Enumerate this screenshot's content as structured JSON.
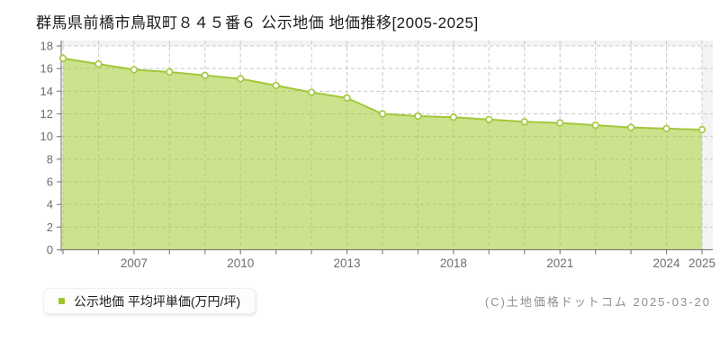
{
  "title": "群馬県前橋市鳥取町８４５番６ 公示地価 地価推移[2005-2025]",
  "legend": {
    "label": "公示地価 平均坪単価(万円/坪)",
    "marker_color": "#9ec62a"
  },
  "footer": {
    "copyright": "(C)土地価格ドットコム 2025-03-20"
  },
  "chart_data": {
    "type": "area",
    "title": "群馬県前橋市鳥取町８４５番６ 公示地価 地価推移[2005-2025]",
    "series_name": "公示地価 平均坪単価(万円/坪)",
    "x": [
      2005,
      2006,
      2007,
      2008,
      2009,
      2010,
      2011,
      2012,
      2013,
      2015,
      2016,
      2018,
      2019,
      2020,
      2021,
      2022,
      2023,
      2024,
      2025
    ],
    "values": [
      16.9,
      16.4,
      15.9,
      15.7,
      15.4,
      15.1,
      14.5,
      13.9,
      13.4,
      12.0,
      11.8,
      11.7,
      11.5,
      11.3,
      11.2,
      11.0,
      10.8,
      10.7,
      10.6
    ],
    "xlabel": "",
    "ylabel": "",
    "ylim": [
      0,
      18
    ],
    "ytick_step": 2,
    "x_tick_labels": [
      "2007",
      "2010",
      "2013",
      "2018",
      "2021",
      "2024",
      "2025"
    ],
    "x_tick_indices": [
      2,
      5,
      8,
      11,
      14,
      17,
      18
    ],
    "grid": "dashed",
    "legend_position": "bottom-left",
    "colors": {
      "line": "#a3c73c",
      "fill": "rgba(166,206,57,0.58)",
      "marker_fill": "#ffffff",
      "grid": "#c8c8c8",
      "axis": "#828282",
      "tick_text": "#6e6e6e",
      "plot_bg": "#ffffff",
      "canvas_bg": "#f3f3f3"
    }
  }
}
